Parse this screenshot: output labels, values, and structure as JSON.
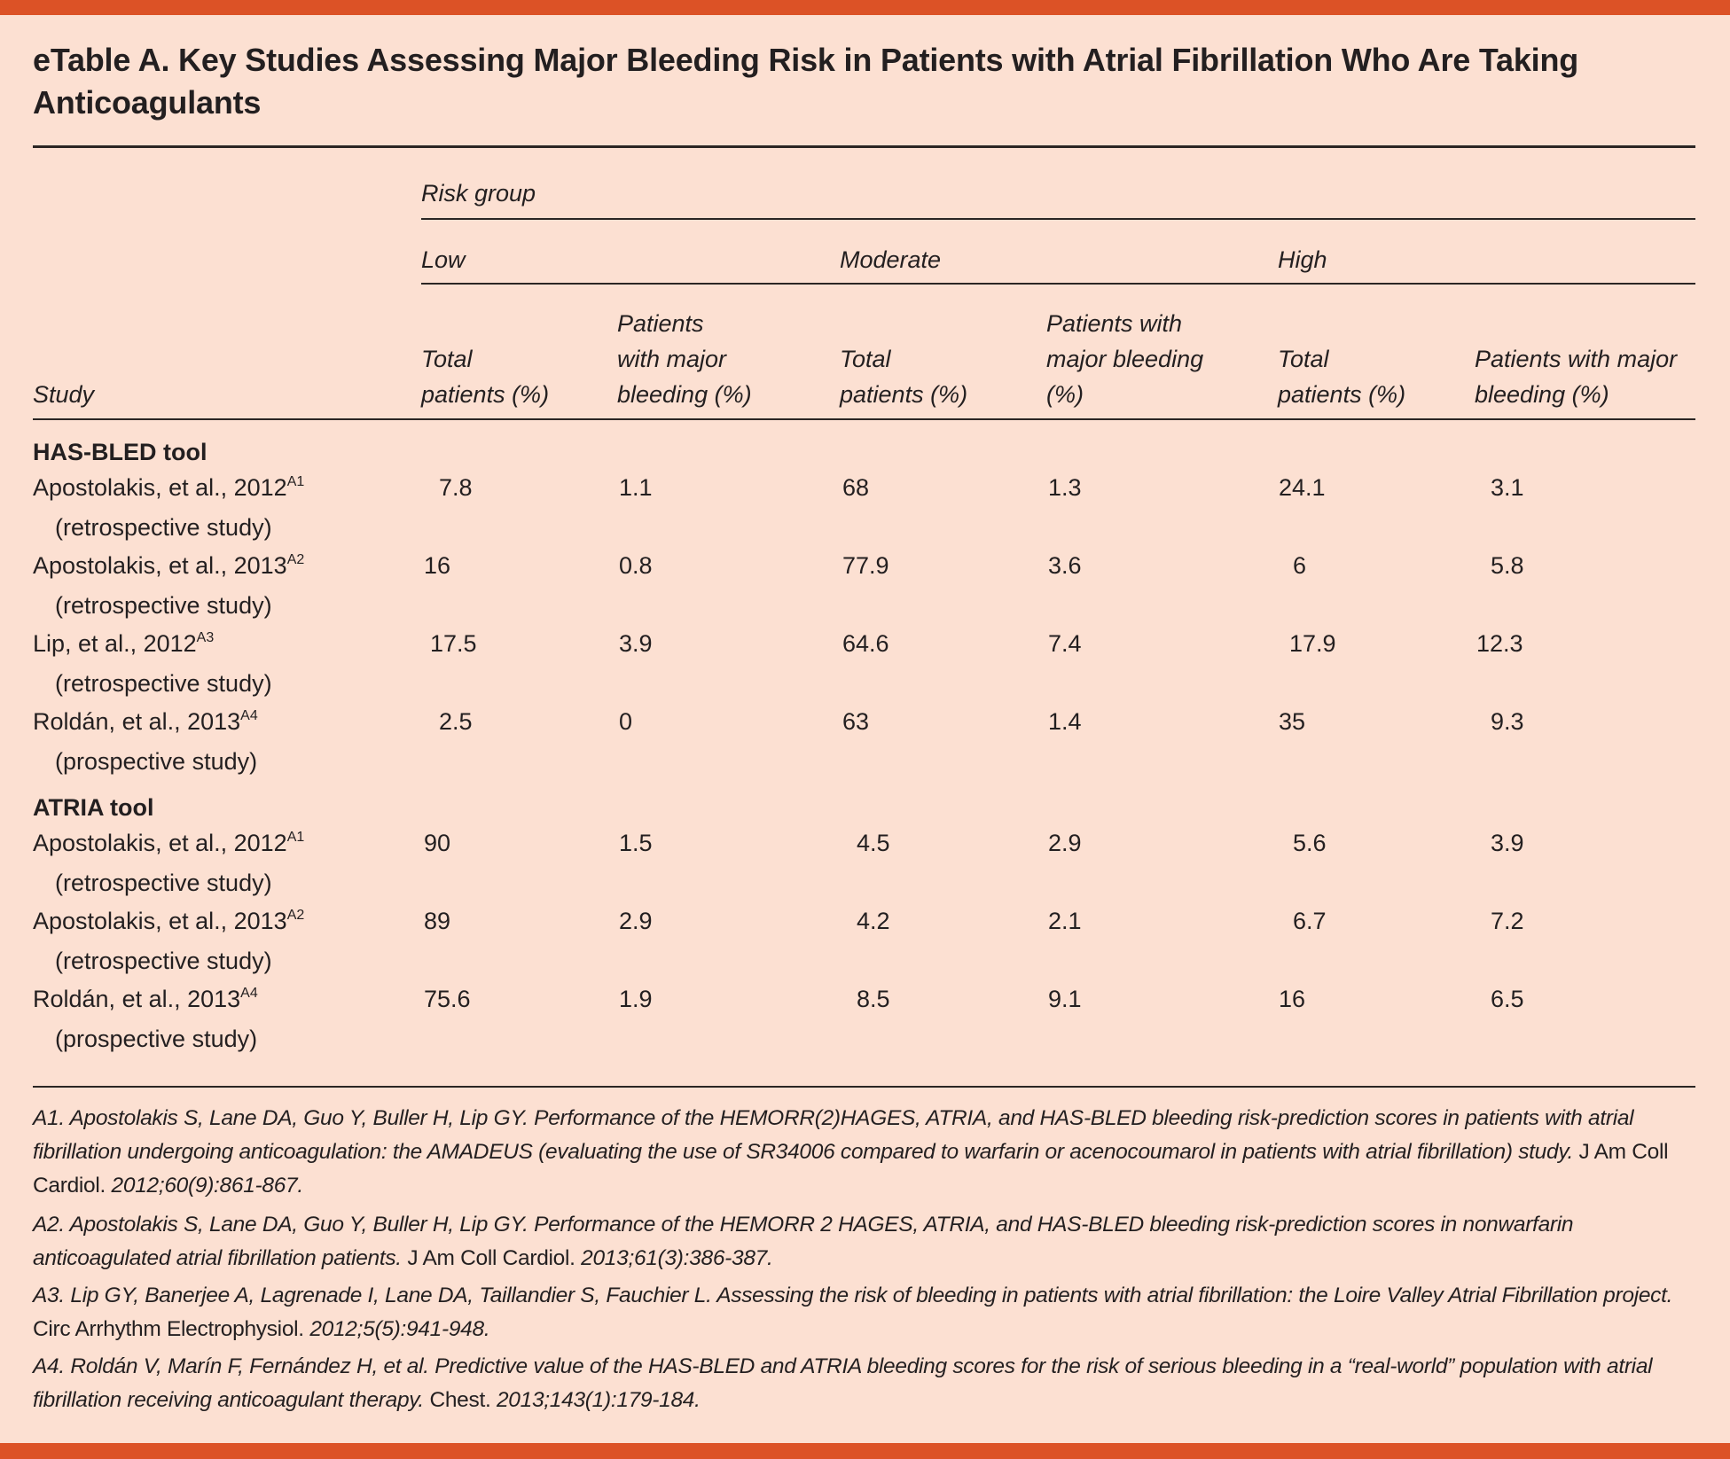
{
  "title": "eTable A. Key Studies Assessing Major Bleeding Risk in Patients with Atrial Fibrillation Who Are Taking Anticoagulants",
  "header": {
    "risk_group": "Risk group",
    "groups": [
      "Low",
      "Moderate",
      "High"
    ],
    "study": "Study",
    "columns": [
      {
        "line1": "",
        "line2": "Total",
        "line3": "patients (%)"
      },
      {
        "line1": "Patients",
        "line2": "with major",
        "line3": "bleeding (%)"
      },
      {
        "line1": "",
        "line2": "Total",
        "line3": "patients (%)"
      },
      {
        "line1": "Patients with",
        "line2": "major bleeding",
        "line3": "(%)"
      },
      {
        "line1": "",
        "line2": "Total",
        "line3": "patients (%)"
      },
      {
        "line1": "",
        "line2": "Patients with major",
        "line3": "bleeding (%)"
      }
    ]
  },
  "sections": [
    {
      "name": "HAS-BLED tool",
      "rows": [
        {
          "study": "Apostolakis, et al., 2012",
          "ref": "A1",
          "design": "(retrospective study)",
          "values": [
            "7.8",
            "1.1",
            "68",
            "1.3",
            "24.1",
            "3.1"
          ]
        },
        {
          "study": "Apostolakis, et al., 2013",
          "ref": "A2",
          "design": "(retrospective study)",
          "values": [
            "16",
            "0.8",
            "77.9",
            "3.6",
            "6",
            "5.8"
          ]
        },
        {
          "study": "Lip, et al., 2012",
          "ref": "A3",
          "design": "(retrospective study)",
          "values": [
            "17.5",
            "3.9",
            "64.6",
            "7.4",
            "17.9",
            "12.3"
          ]
        },
        {
          "study": "Roldán, et al., 2013",
          "ref": "A4",
          "design": "(prospective study)",
          "values": [
            "2.5",
            "0",
            "63",
            "1.4",
            "35",
            "9.3"
          ]
        }
      ]
    },
    {
      "name": "ATRIA tool",
      "rows": [
        {
          "study": "Apostolakis, et al., 2012",
          "ref": "A1",
          "design": "(retrospective study)",
          "values": [
            "90",
            "1.5",
            "4.5",
            "2.9",
            "5.6",
            "3.9"
          ]
        },
        {
          "study": "Apostolakis, et al., 2013",
          "ref": "A2",
          "design": "(retrospective study)",
          "values": [
            "89",
            "2.9",
            "4.2",
            "2.1",
            "6.7",
            "7.2"
          ]
        },
        {
          "study": "Roldán, et al., 2013",
          "ref": "A4",
          "design": "(prospective study)",
          "values": [
            "75.6",
            "1.9",
            "8.5",
            "9.1",
            "16",
            "6.5"
          ]
        }
      ]
    }
  ],
  "footnotes": [
    {
      "pre": "A1. Apostolakis S, Lane DA, Guo Y, Buller H, Lip GY. Performance of the HEMORR(2)HAGES, ATRIA, and HAS-BLED bleeding risk-prediction scores in patients with atrial fibrillation undergoing anticoagulation: the AMADEUS (evaluating the use of SR34006 compared to warfarin or acenocoumarol in patients with atrial fibrillation) study.",
      "journal": "J Am Coll Cardiol.",
      "cite": "2012;60(9):861-867."
    },
    {
      "pre": "A2. Apostolakis S, Lane DA, Guo Y, Buller H, Lip GY. Performance of the HEMORR 2 HAGES, ATRIA, and HAS-BLED bleeding risk-prediction scores in nonwarfarin anticoagulated atrial fibrillation patients.",
      "journal": "J Am Coll Cardiol.",
      "cite": "2013;61(3):386-387."
    },
    {
      "pre": "A3. Lip GY, Banerjee A, Lagrenade I, Lane DA, Taillandier S, Fauchier L. Assessing the risk of bleeding in patients with atrial fibrillation: the Loire Valley Atrial Fibrillation project.",
      "journal": "Circ Arrhythm Electrophysiol.",
      "cite": "2012;5(5):941-948."
    },
    {
      "pre": "A4. Roldán V, Marín F, Fernández H, et al. Predictive value of the HAS-BLED and ATRIA bleeding scores for the risk of serious bleeding in a “real-world” population with atrial fibrillation receiving anticoagulant therapy.",
      "journal": "Chest.",
      "cite": "2013;143(1):179-184."
    }
  ],
  "colors": {
    "accent_bar": "#dc5226",
    "background": "#fce0d2",
    "text": "#231f20"
  }
}
